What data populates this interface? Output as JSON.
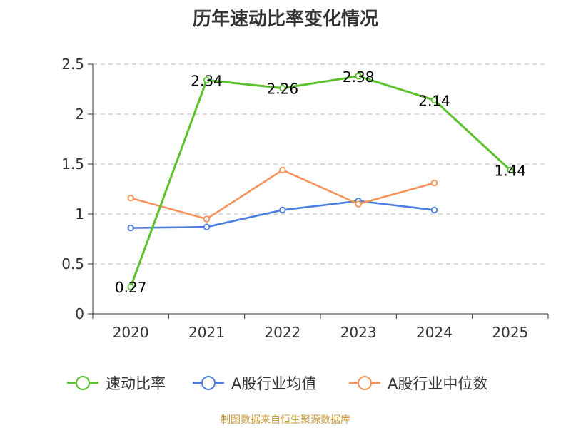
{
  "chart_data": {
    "type": "line",
    "title": "历年速动比率变化情况",
    "categories": [
      "2020",
      "2021",
      "2022",
      "2023",
      "2024",
      "2025"
    ],
    "ylim": [
      0,
      2.5
    ],
    "yticks": [
      "0",
      "0.5",
      "1",
      "1.5",
      "2",
      "2.5"
    ],
    "grid": true,
    "legend_position": "bottom",
    "series": [
      {
        "name": "速动比率",
        "color": "#5cc12f",
        "values": [
          0.27,
          2.34,
          2.26,
          2.38,
          2.14,
          1.44
        ],
        "labels": [
          "0.27",
          "2.34",
          "2.26",
          "2.38",
          "2.14",
          "1.44"
        ]
      },
      {
        "name": "A股行业均值",
        "color": "#4a7fe0",
        "values": [
          0.86,
          0.87,
          1.04,
          1.13,
          1.04,
          null
        ]
      },
      {
        "name": "A股行业中位数",
        "color": "#f5935a",
        "values": [
          1.16,
          0.95,
          1.44,
          1.1,
          1.31,
          null
        ]
      }
    ]
  },
  "source_note": "制图数据来自恒生聚源数据库"
}
